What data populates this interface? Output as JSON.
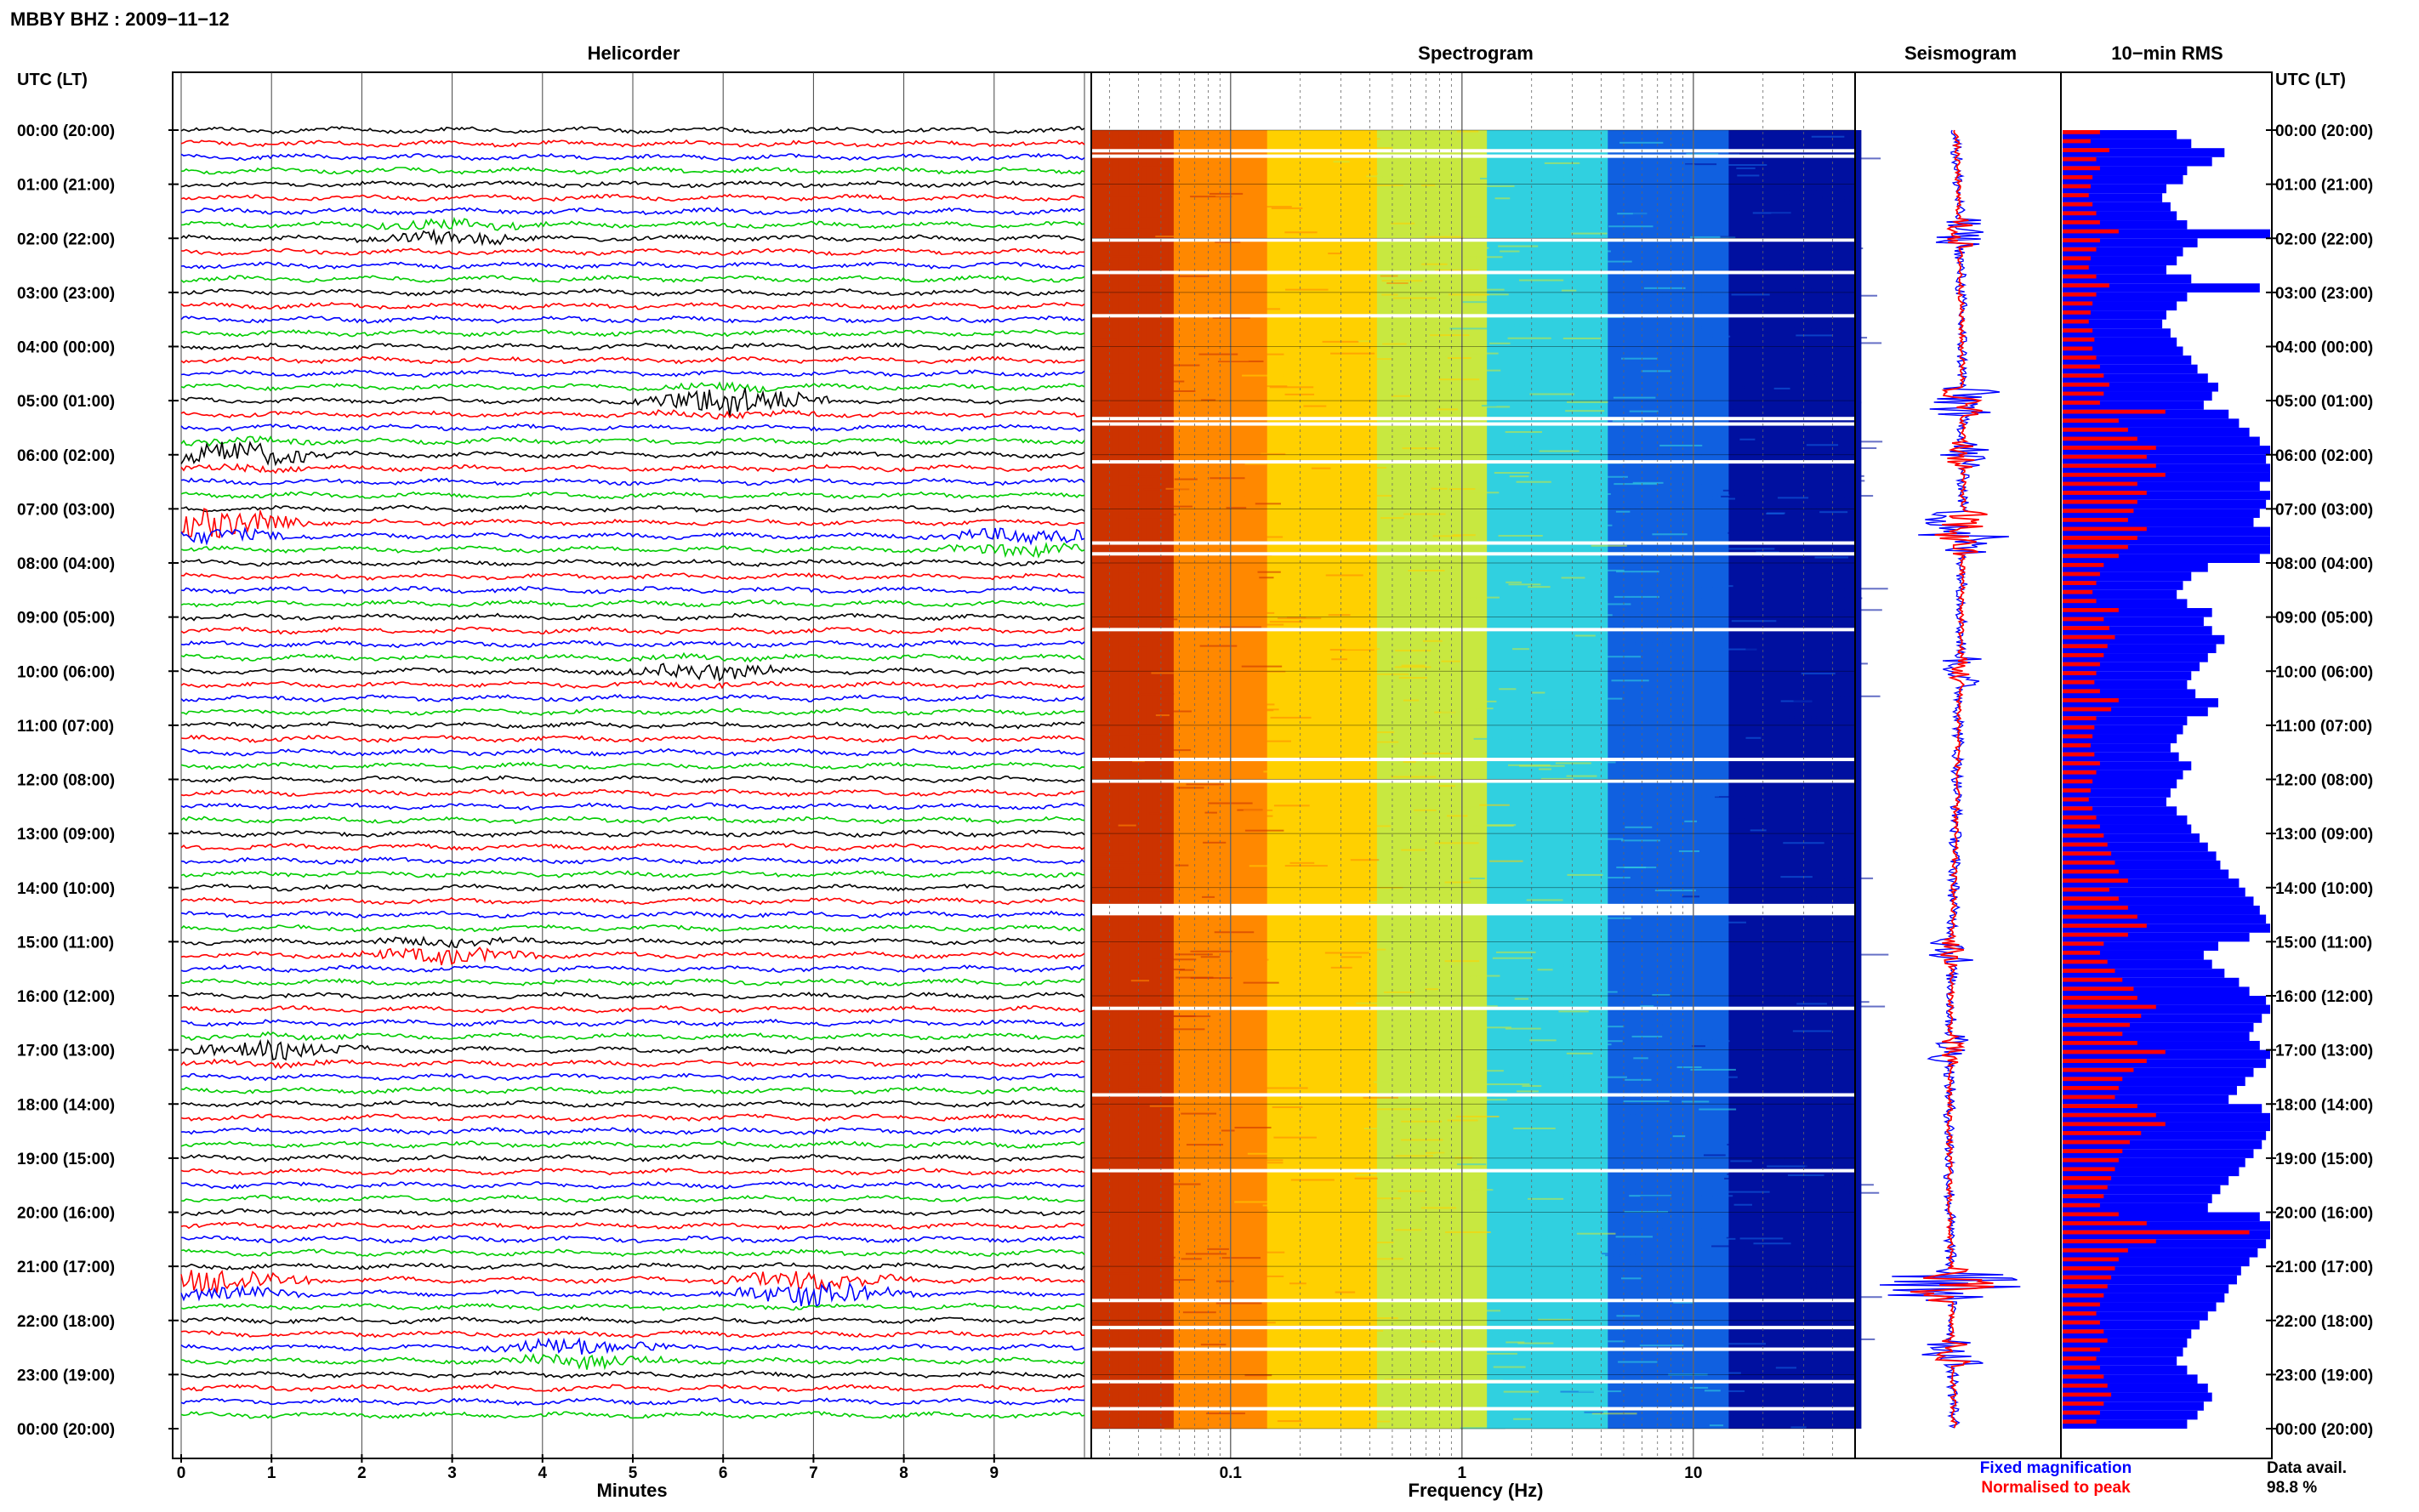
{
  "title": "MBBY BHZ : 2009−11−12",
  "utc_label": "UTC (LT)",
  "panels": {
    "helicorder": "Helicorder",
    "spectrogram": "Spectrogram",
    "seismogram": "Seismogram",
    "rms": "10−min RMS"
  },
  "hour_labels": [
    "00:00 (20:00)",
    "01:00 (21:00)",
    "02:00 (22:00)",
    "03:00 (23:00)",
    "04:00 (00:00)",
    "05:00 (01:00)",
    "06:00 (02:00)",
    "07:00 (03:00)",
    "08:00 (04:00)",
    "09:00 (05:00)",
    "10:00 (06:00)",
    "11:00 (07:00)",
    "12:00 (08:00)",
    "13:00 (09:00)",
    "14:00 (10:00)",
    "15:00 (11:00)",
    "16:00 (12:00)",
    "17:00 (13:00)",
    "18:00 (14:00)",
    "19:00 (15:00)",
    "20:00 (16:00)",
    "21:00 (17:00)",
    "22:00 (18:00)",
    "23:00 (19:00)",
    "00:00 (20:00)"
  ],
  "x_axes": {
    "minutes_label": "Minutes",
    "minutes_ticks": [
      "0",
      "1",
      "2",
      "3",
      "4",
      "5",
      "6",
      "7",
      "8",
      "9"
    ],
    "frequency_label": "Frequency (Hz)",
    "frequency_ticks": [
      "0.1",
      "1",
      "10"
    ]
  },
  "legend": {
    "fixed": "Fixed magnification",
    "normalised": "Normalised to peak",
    "fixed_color": "#0000ff",
    "normalised_color": "#ff0000"
  },
  "data_avail": {
    "label": "Data avail.",
    "value": "98.8 %"
  },
  "colors": {
    "helicorder_lines": [
      "#000000",
      "#ff0000",
      "#0000ff",
      "#00cc00"
    ],
    "rms_fixed": "#0000ff",
    "rms_normalised": "#ff0000"
  },
  "chart_data": [
    {
      "type": "line",
      "name": "helicorder",
      "title": "Helicorder",
      "xlabel": "Minutes",
      "xlim": [
        0,
        10
      ],
      "rows_per_hour": 4,
      "row_minutes": 15,
      "hours": 24,
      "event_bursts": [
        {
          "hour": 1.9,
          "minute": 3.0,
          "amplitude": 1.5
        },
        {
          "hour": 5.0,
          "minute": 6.1,
          "amplitude": 2.5
        },
        {
          "hour": 6.0,
          "minute": 0.6,
          "amplitude": 2.0
        },
        {
          "hour": 7.3,
          "minute": 0.3,
          "amplitude": 3.0
        },
        {
          "hour": 7.6,
          "minute": 9.4,
          "amplitude": 1.8
        },
        {
          "hour": 10.0,
          "minute": 5.8,
          "amplitude": 1.2
        },
        {
          "hour": 15.2,
          "minute": 2.9,
          "amplitude": 1.5
        },
        {
          "hour": 17.0,
          "minute": 1.0,
          "amplitude": 1.3
        },
        {
          "hour": 21.3,
          "minute": 0.4,
          "amplitude": 2.5
        },
        {
          "hour": 21.4,
          "minute": 7.0,
          "amplitude": 3.0
        },
        {
          "hour": 22.6,
          "minute": 4.4,
          "amplitude": 2.0
        }
      ]
    },
    {
      "type": "heatmap",
      "name": "spectrogram",
      "title": "Spectrogram",
      "xlabel": "Frequency (Hz)",
      "x_scale": "log",
      "xlim": [
        0.025,
        50
      ],
      "x_ticks": [
        0.1,
        1,
        10
      ],
      "colormap": [
        "#cc3300",
        "#ff8800",
        "#ffd000",
        "#c8e840",
        "#30d0e0",
        "#1060e0",
        "#0010a0"
      ],
      "data_gap_hours": [
        14.3,
        14.5
      ]
    },
    {
      "type": "line",
      "name": "seismogram",
      "title": "Seismogram",
      "series": [
        {
          "name": "Fixed magnification",
          "color": "#0000ff"
        },
        {
          "name": "Normalised to peak",
          "color": "#ff0000"
        }
      ]
    },
    {
      "type": "bar",
      "name": "rms",
      "title": "10−min RMS",
      "orientation": "horizontal",
      "interval_minutes": 10,
      "series": [
        {
          "name": "Fixed magnification",
          "color": "#0000ff",
          "values": [
            0.55,
            0.62,
            0.78,
            0.72,
            0.6,
            0.58,
            0.5,
            0.48,
            0.52,
            0.55,
            0.6,
            1.0,
            0.65,
            0.58,
            0.55,
            0.5,
            0.62,
            0.95,
            0.6,
            0.55,
            0.5,
            0.48,
            0.52,
            0.55,
            0.58,
            0.62,
            0.65,
            0.7,
            0.75,
            0.72,
            0.68,
            0.8,
            0.85,
            0.9,
            0.95,
            1.0,
            0.98,
            1.0,
            1.0,
            0.95,
            1.0,
            0.98,
            0.95,
            0.92,
            1.0,
            1.0,
            1.0,
            0.95,
            0.7,
            0.62,
            0.58,
            0.55,
            0.6,
            0.72,
            0.68,
            0.72,
            0.78,
            0.74,
            0.7,
            0.66,
            0.62,
            0.6,
            0.64,
            0.75,
            0.7,
            0.6,
            0.58,
            0.55,
            0.52,
            0.56,
            0.62,
            0.58,
            0.55,
            0.52,
            0.5,
            0.55,
            0.6,
            0.62,
            0.66,
            0.7,
            0.74,
            0.76,
            0.8,
            0.85,
            0.88,
            0.92,
            0.95,
            0.98,
            1.0,
            0.9,
            0.75,
            0.68,
            0.72,
            0.78,
            0.85,
            0.9,
            0.98,
            1.0,
            0.96,
            0.92,
            0.9,
            0.95,
            1.0,
            0.98,
            0.92,
            0.88,
            0.84,
            0.8,
            0.96,
            1.0,
            1.0,
            0.98,
            0.96,
            0.92,
            0.88,
            0.85,
            0.8,
            0.76,
            0.72,
            0.7,
            0.95,
            1.0,
            1.0,
            0.98,
            0.94,
            0.9,
            0.86,
            0.84,
            0.8,
            0.78,
            0.74,
            0.7,
            0.66,
            0.62,
            0.6,
            0.58,
            0.55,
            0.6,
            0.65,
            0.7,
            0.72,
            0.68,
            0.65,
            0.6
          ]
        },
        {
          "name": "Normalised to peak",
          "color": "#ff0000",
          "values": [
            0.2,
            0.15,
            0.25,
            0.18,
            0.2,
            0.16,
            0.15,
            0.14,
            0.16,
            0.18,
            0.2,
            0.3,
            0.2,
            0.18,
            0.15,
            0.14,
            0.18,
            0.25,
            0.18,
            0.16,
            0.15,
            0.14,
            0.16,
            0.17,
            0.16,
            0.18,
            0.2,
            0.22,
            0.25,
            0.22,
            0.2,
            0.55,
            0.3,
            0.35,
            0.4,
            0.5,
            0.45,
            0.5,
            0.55,
            0.4,
            0.45,
            0.4,
            0.38,
            0.35,
            0.45,
            0.4,
            0.35,
            0.3,
            0.22,
            0.2,
            0.18,
            0.16,
            0.18,
            0.3,
            0.22,
            0.25,
            0.28,
            0.24,
            0.22,
            0.2,
            0.18,
            0.17,
            0.2,
            0.3,
            0.26,
            0.18,
            0.17,
            0.16,
            0.15,
            0.17,
            0.2,
            0.18,
            0.16,
            0.15,
            0.14,
            0.16,
            0.18,
            0.2,
            0.22,
            0.24,
            0.26,
            0.28,
            0.3,
            0.35,
            0.25,
            0.3,
            0.35,
            0.4,
            0.45,
            0.35,
            0.22,
            0.2,
            0.24,
            0.28,
            0.32,
            0.38,
            0.4,
            0.5,
            0.42,
            0.36,
            0.32,
            0.4,
            0.55,
            0.45,
            0.38,
            0.32,
            0.3,
            0.28,
            0.4,
            0.5,
            0.55,
            0.42,
            0.36,
            0.32,
            0.3,
            0.28,
            0.26,
            0.24,
            0.22,
            0.2,
            0.3,
            0.45,
            1.0,
            0.5,
            0.35,
            0.3,
            0.28,
            0.26,
            0.24,
            0.22,
            0.2,
            0.18,
            0.2,
            0.22,
            0.24,
            0.2,
            0.18,
            0.2,
            0.22,
            0.24,
            0.26,
            0.22,
            0.2,
            0.18
          ]
        }
      ]
    }
  ]
}
